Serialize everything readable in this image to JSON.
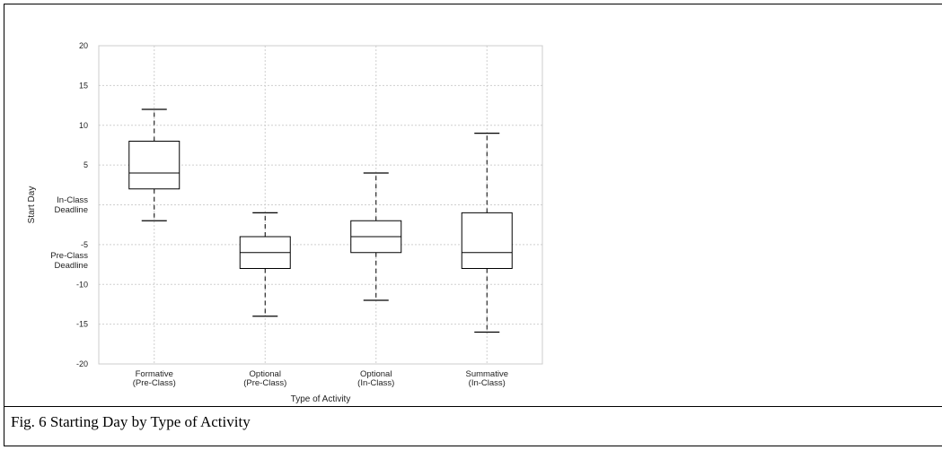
{
  "caption": "Fig. 6 Starting Day by Type of Activity",
  "chart_data": {
    "type": "box",
    "title": "",
    "xlabel": "Type of Activity",
    "ylabel": "Start Day",
    "ylim": [
      -20,
      20
    ],
    "grid": true,
    "yticks": [
      {
        "value": 20,
        "label": "20"
      },
      {
        "value": 15,
        "label": "15"
      },
      {
        "value": 10,
        "label": "10"
      },
      {
        "value": 5,
        "label": "5"
      },
      {
        "value": -5,
        "label": "-5"
      },
      {
        "value": -10,
        "label": "-10"
      },
      {
        "value": -15,
        "label": "-15"
      },
      {
        "value": -20,
        "label": "-20"
      }
    ],
    "yannotations": [
      {
        "value": 0,
        "lines": [
          "In-Class",
          "Deadline"
        ]
      },
      {
        "value": -7,
        "lines": [
          "Pre-Class",
          "Deadline"
        ]
      }
    ],
    "categories": [
      {
        "lines": [
          "Formative",
          "(Pre-Class)"
        ]
      },
      {
        "lines": [
          "Optional",
          "(Pre-Class)"
        ]
      },
      {
        "lines": [
          "Optional",
          "(In-Class)"
        ]
      },
      {
        "lines": [
          "Summative",
          "(In-Class)"
        ]
      }
    ],
    "boxes": [
      {
        "whisker_low": -2,
        "q1": 2,
        "median": 4,
        "q3": 8,
        "whisker_high": 12
      },
      {
        "whisker_low": -14,
        "q1": -8,
        "median": -6,
        "q3": -4,
        "whisker_high": -1
      },
      {
        "whisker_low": -12,
        "q1": -6,
        "median": -4,
        "q3": -2,
        "whisker_high": 4
      },
      {
        "whisker_low": -16,
        "q1": -8,
        "median": -6,
        "q3": -1,
        "whisker_high": 9
      }
    ]
  }
}
